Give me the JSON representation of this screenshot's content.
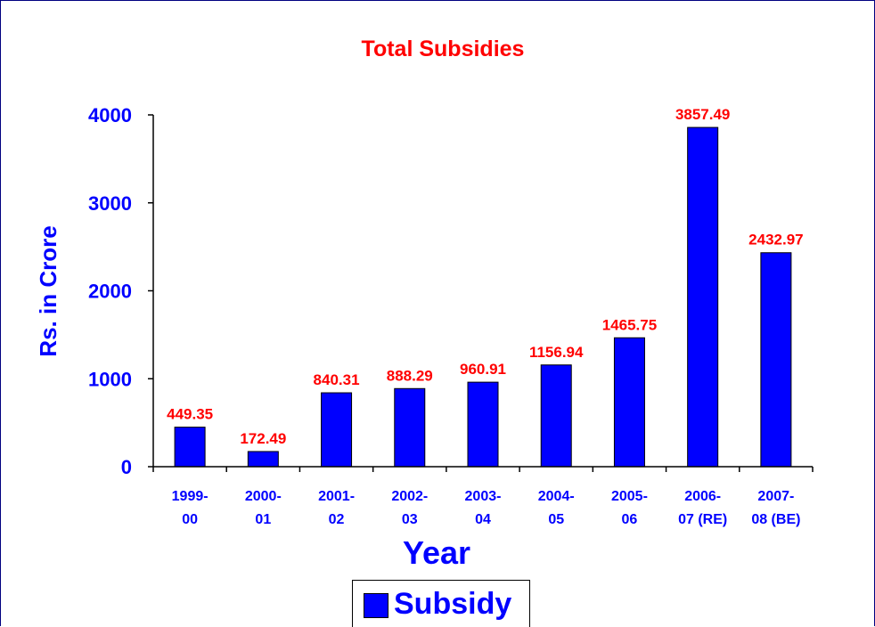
{
  "chart_data": {
    "type": "bar",
    "title": "Total Subsidies",
    "xlabel": "Year",
    "ylabel": "Rs. in Crore",
    "categories": [
      [
        "1999-",
        "00"
      ],
      [
        "2000-",
        "01"
      ],
      [
        "2001-",
        "02"
      ],
      [
        "2002-",
        "03"
      ],
      [
        "2003-",
        "04"
      ],
      [
        "2004-",
        "05"
      ],
      [
        "2005-",
        "06"
      ],
      [
        "2006-",
        "07 (RE)"
      ],
      [
        "2007-",
        "08 (BE)"
      ]
    ],
    "series": [
      {
        "name": "Subsidy",
        "values": [
          449.35,
          172.49,
          840.31,
          888.29,
          960.91,
          1156.94,
          1465.75,
          3857.49,
          2432.97
        ],
        "value_labels": [
          "449.35",
          "172.49",
          "840.31",
          "888.29",
          "960.91",
          "1156.94",
          "1465.75",
          "3857.49",
          "2432.97"
        ],
        "color": "#0000ff"
      }
    ],
    "ylim": [
      0,
      4000
    ],
    "yticks": [
      "0",
      "1000",
      "2000",
      "3000",
      "4000"
    ],
    "grid": false,
    "legend_position": "bottom",
    "colors": {
      "title": "#ff0000",
      "data_labels": "#ff0000",
      "axis_text": "#0000ff",
      "bars": "#0000ff",
      "frame": "#000080"
    }
  }
}
